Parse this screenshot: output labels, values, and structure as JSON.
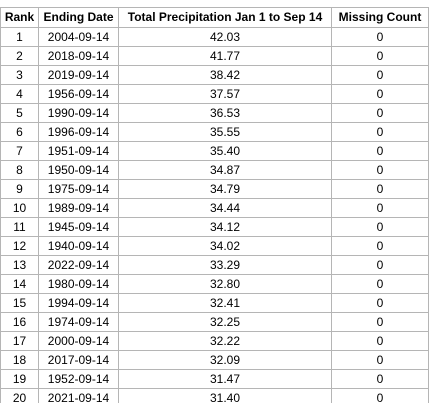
{
  "table": {
    "columns": [
      {
        "key": "rank",
        "label": "Rank"
      },
      {
        "key": "ending_date",
        "label": "Ending Date"
      },
      {
        "key": "total_precip",
        "label": "Total Precipitation Jan 1 to Sep 14"
      },
      {
        "key": "missing_count",
        "label": "Missing Count"
      }
    ],
    "rows": [
      {
        "rank": "1",
        "ending_date": "2004-09-14",
        "total_precip": "42.03",
        "missing_count": "0"
      },
      {
        "rank": "2",
        "ending_date": "2018-09-14",
        "total_precip": "41.77",
        "missing_count": "0"
      },
      {
        "rank": "3",
        "ending_date": "2019-09-14",
        "total_precip": "38.42",
        "missing_count": "0"
      },
      {
        "rank": "4",
        "ending_date": "1956-09-14",
        "total_precip": "37.57",
        "missing_count": "0"
      },
      {
        "rank": "5",
        "ending_date": "1990-09-14",
        "total_precip": "36.53",
        "missing_count": "0"
      },
      {
        "rank": "6",
        "ending_date": "1996-09-14",
        "total_precip": "35.55",
        "missing_count": "0"
      },
      {
        "rank": "7",
        "ending_date": "1951-09-14",
        "total_precip": "35.40",
        "missing_count": "0"
      },
      {
        "rank": "8",
        "ending_date": "1950-09-14",
        "total_precip": "34.87",
        "missing_count": "0"
      },
      {
        "rank": "9",
        "ending_date": "1975-09-14",
        "total_precip": "34.79",
        "missing_count": "0"
      },
      {
        "rank": "10",
        "ending_date": "1989-09-14",
        "total_precip": "34.44",
        "missing_count": "0"
      },
      {
        "rank": "11",
        "ending_date": "1945-09-14",
        "total_precip": "34.12",
        "missing_count": "0"
      },
      {
        "rank": "12",
        "ending_date": "1940-09-14",
        "total_precip": "34.02",
        "missing_count": "0"
      },
      {
        "rank": "13",
        "ending_date": "2022-09-14",
        "total_precip": "33.29",
        "missing_count": "0"
      },
      {
        "rank": "14",
        "ending_date": "1980-09-14",
        "total_precip": "32.80",
        "missing_count": "0"
      },
      {
        "rank": "15",
        "ending_date": "1994-09-14",
        "total_precip": "32.41",
        "missing_count": "0"
      },
      {
        "rank": "16",
        "ending_date": "1974-09-14",
        "total_precip": "32.25",
        "missing_count": "0"
      },
      {
        "rank": "17",
        "ending_date": "2000-09-14",
        "total_precip": "32.22",
        "missing_count": "0"
      },
      {
        "rank": "18",
        "ending_date": "2017-09-14",
        "total_precip": "32.09",
        "missing_count": "0"
      },
      {
        "rank": "19",
        "ending_date": "1952-09-14",
        "total_precip": "31.47",
        "missing_count": "0"
      },
      {
        "rank": "20",
        "ending_date": "2021-09-14",
        "total_precip": "31.40",
        "missing_count": "0"
      }
    ]
  },
  "colors": {
    "border": "#b5b5b5",
    "text": "#000000",
    "background": "#ffffff"
  }
}
